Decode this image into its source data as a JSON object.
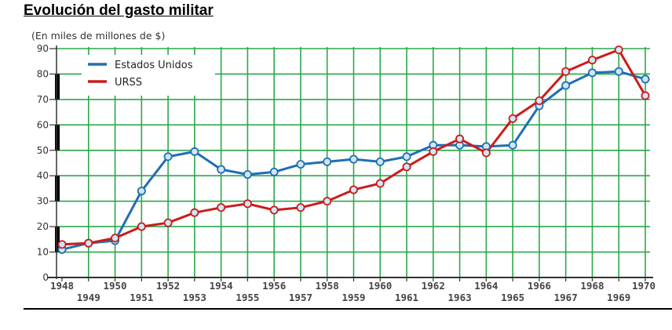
{
  "chart_data": {
    "type": "line",
    "title": "Evolución del gasto militar",
    "ylabel": "(En miles de millones de $)",
    "xlabel": "",
    "ylim": [
      0,
      90
    ],
    "yticks": [
      0,
      10,
      20,
      30,
      40,
      50,
      60,
      70,
      80,
      90
    ],
    "xlim": [
      1948,
      1970
    ],
    "x": [
      1948,
      1949,
      1950,
      1951,
      1952,
      1953,
      1954,
      1955,
      1956,
      1957,
      1958,
      1959,
      1960,
      1961,
      1962,
      1963,
      1964,
      1965,
      1966,
      1967,
      1968,
      1969,
      1970
    ],
    "x_tick_labels": [
      "1948",
      "1949",
      "1950",
      "1951",
      "1952",
      "1953",
      "1954",
      "1955",
      "1956",
      "1957",
      "1958",
      "1959",
      "1960",
      "1961",
      "1962",
      "1963",
      "1964",
      "1965",
      "1966",
      "1967",
      "1968",
      "1969",
      "1970"
    ],
    "grid": true,
    "legend_position": "top-left",
    "series": [
      {
        "name": "Estados Unidos",
        "color": "#1f6fb2",
        "values": [
          11,
          13.5,
          14.5,
          34,
          47.5,
          49.5,
          42.5,
          40.5,
          41.5,
          44.5,
          45.5,
          46.5,
          45.5,
          47.5,
          52,
          52,
          51.5,
          52,
          67.5,
          75.5,
          80.5,
          81,
          78
        ]
      },
      {
        "name": "URSS",
        "color": "#cc1b1b",
        "values": [
          13,
          13.5,
          15.5,
          20,
          21.5,
          25.5,
          27.5,
          29,
          26.5,
          27.5,
          30,
          34.5,
          37,
          43.5,
          49.5,
          54.5,
          49,
          62.5,
          69.5,
          81,
          85.5,
          89.5,
          71.5
        ]
      }
    ]
  }
}
